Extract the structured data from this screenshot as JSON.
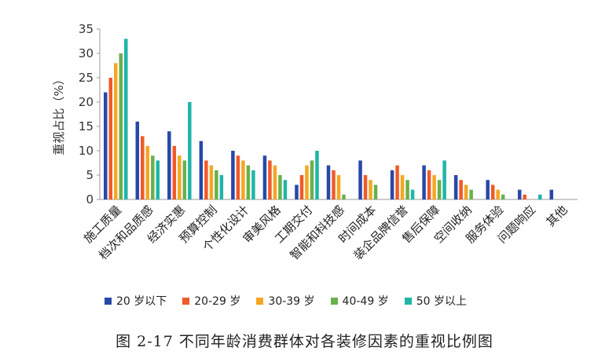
{
  "chart_data": {
    "type": "bar",
    "ylabel": "重视占比（%）",
    "ylim": [
      0,
      35
    ],
    "yticks": [
      0,
      5,
      10,
      15,
      20,
      25,
      30,
      35
    ],
    "grid": false,
    "legend_position": "bottom",
    "categories": [
      "施工质量",
      "档次和品质感",
      "经济实惠",
      "预算控制",
      "个性化设计",
      "审美风格",
      "工期交付",
      "智能和科技感",
      "时间成本",
      "装企品牌信誉",
      "售后保障",
      "空间收纳",
      "服务体验",
      "问题响应",
      "其他"
    ],
    "series": [
      {
        "name": "20 岁以下",
        "color": "#2748a8",
        "values": [
          22,
          16,
          14,
          12,
          10,
          9,
          3,
          7,
          8,
          6,
          7,
          5,
          4,
          2,
          2
        ]
      },
      {
        "name": "20-29 岁",
        "color": "#f05a28",
        "values": [
          25,
          13,
          11,
          8,
          9,
          8,
          5,
          6,
          5,
          7,
          6,
          4,
          3,
          1,
          0
        ]
      },
      {
        "name": "30-39 岁",
        "color": "#f5a623",
        "values": [
          28,
          11,
          9,
          7,
          8,
          7,
          7,
          5,
          4,
          5,
          5,
          3,
          2,
          0,
          0
        ]
      },
      {
        "name": "40-49 岁",
        "color": "#6ab04c",
        "values": [
          30,
          9,
          8,
          6,
          7,
          5,
          8,
          1,
          3,
          4,
          4,
          2,
          1,
          0,
          0
        ]
      },
      {
        "name": "50 岁以上",
        "color": "#1fb5a8",
        "values": [
          33,
          8,
          20,
          5,
          6,
          4,
          10,
          0,
          0,
          2,
          8,
          0,
          0,
          1,
          0
        ]
      }
    ]
  },
  "caption": "图 2-17  不同年龄消费群体对各装修因素的重视比例图"
}
